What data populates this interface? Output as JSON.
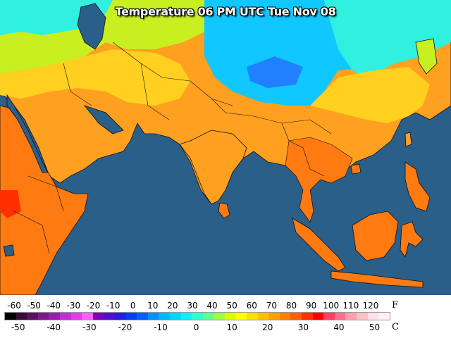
{
  "title": "Temperature 06 PM UTC Tue Nov 08",
  "legend": {
    "f_unit": "F",
    "c_unit": "C",
    "f_ticks": [
      "-60",
      "-50",
      "-40",
      "-30",
      "-20",
      "-10",
      "0",
      "10",
      "20",
      "30",
      "40",
      "50",
      "60",
      "70",
      "80",
      "90",
      "100",
      "110",
      "120"
    ],
    "c_ticks": [
      "-50",
      "-40",
      "-30",
      "-20",
      "-10",
      "0",
      "10",
      "20",
      "30",
      "40",
      "50"
    ],
    "f_values": [
      -60,
      -50,
      -40,
      -30,
      -20,
      -10,
      0,
      10,
      20,
      30,
      40,
      50,
      60,
      70,
      80,
      90,
      100,
      110,
      120
    ],
    "c_values": [
      -50,
      -40,
      -30,
      -20,
      -10,
      0,
      10,
      20,
      30,
      40,
      50
    ],
    "f_range": [
      -65,
      130
    ],
    "colors": [
      "#000000",
      "#3a0a3a",
      "#5a1060",
      "#7a1a8a",
      "#9a20b0",
      "#c030d0",
      "#e040e0",
      "#ff60ff",
      "#8000c0",
      "#5010d0",
      "#2020e0",
      "#0040f0",
      "#0060ff",
      "#0090ff",
      "#00b8ff",
      "#00d8ff",
      "#10f0f0",
      "#30ffd0",
      "#60ff90",
      "#a0ff40",
      "#d8ff00",
      "#ffff00",
      "#ffe000",
      "#ffc000",
      "#ffa000",
      "#ff8000",
      "#ff6000",
      "#ff3000",
      "#ff0000",
      "#ff4060",
      "#ff7090",
      "#ffa0b0",
      "#ffc0c8",
      "#ffe0e8",
      "#fff0f4"
    ]
  },
  "map": {
    "ocean_color": "#2a5f8a",
    "land_colors": {
      "hot": "#ff7a10",
      "warm": "#ffa020",
      "mild": "#ffd020",
      "cool": "#c8f020",
      "cold": "#30f0e0",
      "colder": "#10c8ff",
      "coldest": "#2080ff"
    }
  }
}
